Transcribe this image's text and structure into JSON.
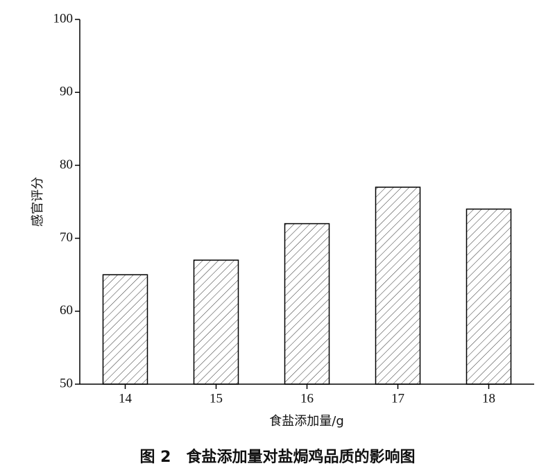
{
  "chart_data": {
    "type": "bar",
    "title": "图 2　食盐添加量对盐焗鸡品质的影响图",
    "x_label": "食盐添加量/g",
    "y_label": "感官评分",
    "categories": [
      "14",
      "15",
      "16",
      "17",
      "18"
    ],
    "values": [
      65,
      67,
      72,
      77,
      74
    ],
    "color": "#000000",
    "ylim": [
      50,
      100
    ],
    "yticks": [
      50,
      60,
      70,
      80,
      90,
      100
    ]
  }
}
